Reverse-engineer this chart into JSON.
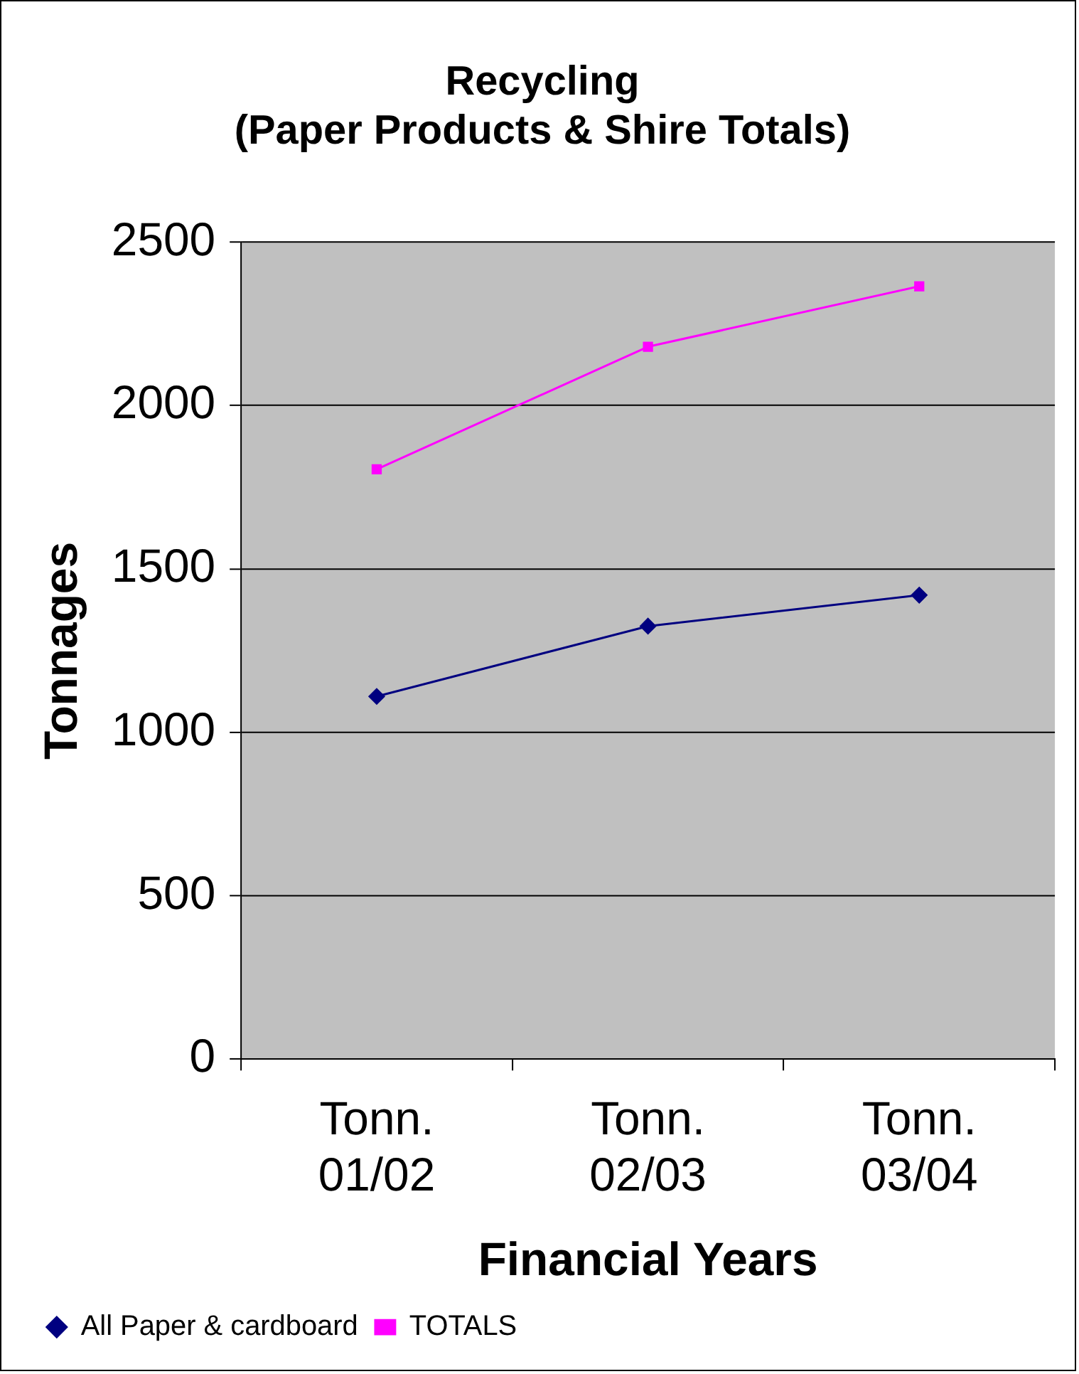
{
  "chart_data": {
    "type": "line",
    "title": "Recycling\n(Paper Products & Shire Totals)",
    "xlabel": "Financial Years",
    "ylabel": "Tonnages",
    "categories": [
      "Tonn.\n01/02",
      "Tonn.\n02/03",
      "Tonn.\n03/04"
    ],
    "series": [
      {
        "name": "All Paper & cardboard",
        "color": "#000080",
        "marker": "diamond",
        "values": [
          1110,
          1325,
          1420
        ]
      },
      {
        "name": "TOTALS",
        "color": "#ff00ff",
        "marker": "square",
        "values": [
          1805,
          2180,
          2365
        ]
      }
    ],
    "ylim": [
      0,
      2500
    ],
    "yticks": [
      0,
      500,
      1000,
      1500,
      2000,
      2500
    ],
    "grid": "y",
    "legend": "bottom left",
    "line_style": "solid"
  }
}
